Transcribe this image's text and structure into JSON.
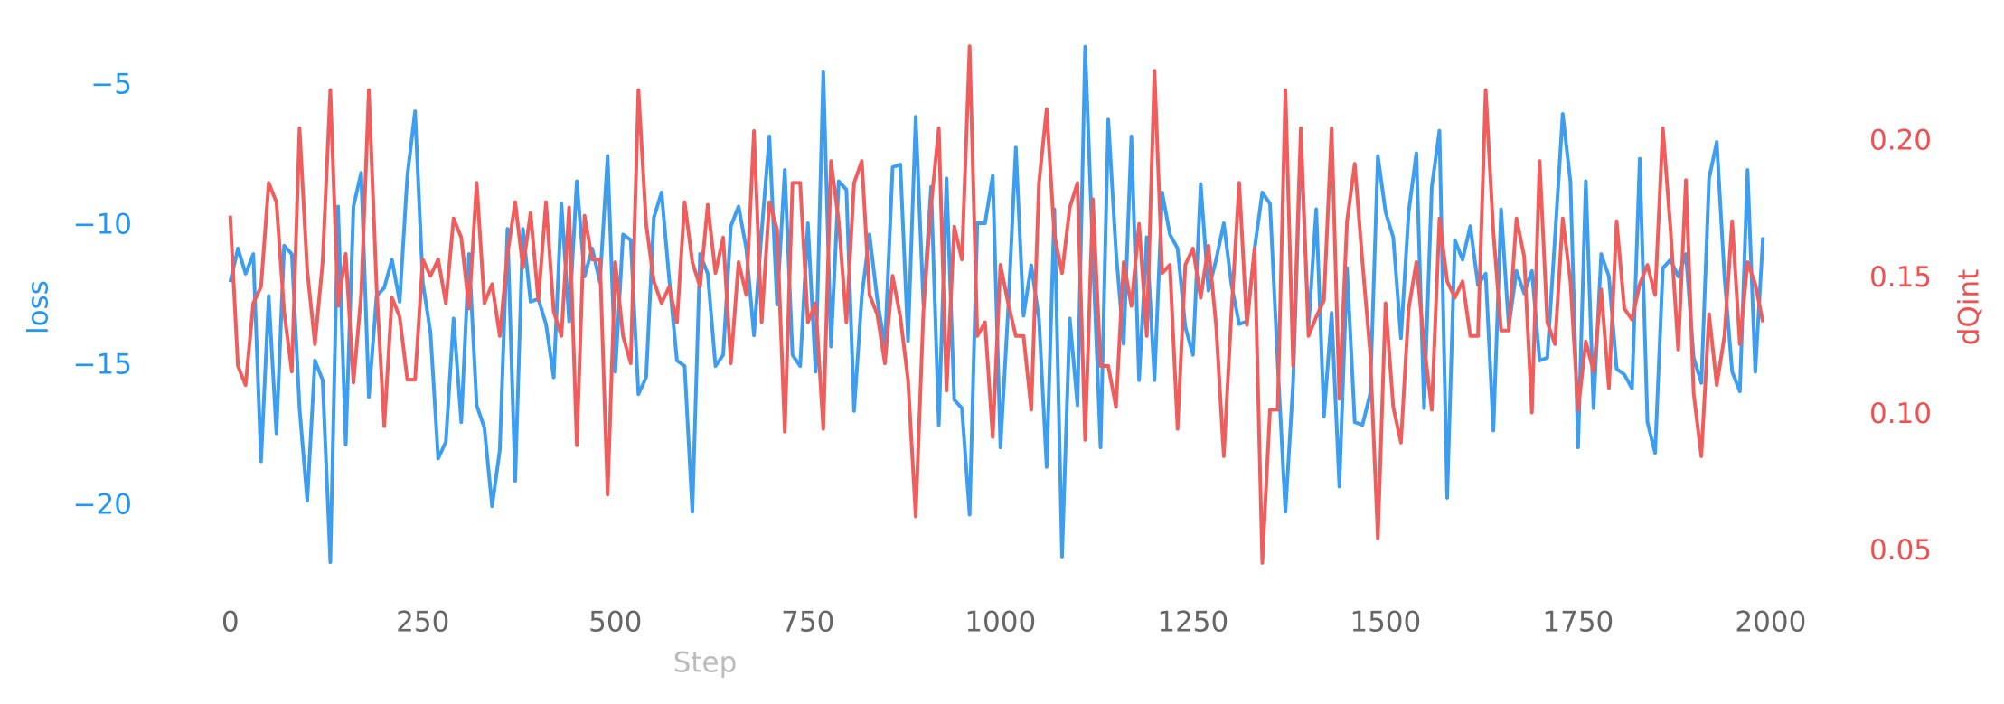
{
  "chart_data": {
    "type": "line",
    "xlabel": "Step",
    "ylabel": "loss",
    "y2label": "dQint",
    "x": [
      0,
      10,
      20,
      30,
      40,
      50,
      60,
      70,
      80,
      90,
      100,
      110,
      120,
      130,
      140,
      150,
      160,
      170,
      180,
      190,
      200,
      210,
      220,
      230,
      240,
      250,
      260,
      270,
      280,
      290,
      300,
      310,
      320,
      330,
      340,
      350,
      360,
      370,
      380,
      390,
      400,
      410,
      420,
      430,
      440,
      450,
      460,
      470,
      480,
      490,
      500,
      510,
      520,
      530,
      540,
      550,
      560,
      570,
      580,
      590,
      600,
      610,
      620,
      630,
      640,
      650,
      660,
      670,
      680,
      690,
      700,
      710,
      720,
      730,
      740,
      750,
      760,
      770,
      780,
      790,
      800,
      810,
      820,
      830,
      840,
      850,
      860,
      870,
      880,
      890,
      900,
      910,
      920,
      930,
      940,
      950,
      960,
      970,
      980,
      990,
      1000,
      1010,
      1020,
      1030,
      1040,
      1050,
      1060,
      1070,
      1080,
      1090,
      1100,
      1110,
      1120,
      1130,
      1140,
      1150,
      1160,
      1170,
      1180,
      1190,
      1200,
      1210,
      1220,
      1230,
      1240,
      1250,
      1260,
      1270,
      1280,
      1290,
      1300,
      1310,
      1320,
      1330,
      1340,
      1350,
      1360,
      1370,
      1380,
      1390,
      1400,
      1410,
      1420,
      1430,
      1440,
      1450,
      1460,
      1470,
      1480,
      1490,
      1500,
      1510,
      1520,
      1530,
      1540,
      1550,
      1560,
      1570,
      1580,
      1590,
      1600,
      1610,
      1620,
      1630,
      1640,
      1650,
      1660,
      1670,
      1680,
      1690,
      1700,
      1710,
      1720,
      1730,
      1740,
      1750,
      1760,
      1770,
      1780,
      1790,
      1800,
      1810,
      1820,
      1830,
      1840,
      1850,
      1860,
      1870,
      1880,
      1890,
      1900,
      1910,
      1920,
      1930,
      1940,
      1950,
      1960,
      1970,
      1980,
      1990
    ],
    "series": [
      {
        "color": "#3d9eef",
        "axis": "y",
        "values": [
          -12,
          -10.8,
          -11.7,
          -11,
          -18.4,
          -12.5,
          -17.4,
          -10.7,
          -11,
          -16.5,
          -19.8,
          -14.8,
          -15.5,
          -22,
          -9.3,
          -17.8,
          -9.3,
          -8.1,
          -16.1,
          -12.5,
          -12.2,
          -11.2,
          -12.7,
          -8.2,
          -5.9,
          -12,
          -13.8,
          -18.3,
          -17.7,
          -13.3,
          -17,
          -11,
          -16.4,
          -17.2,
          -20,
          -18,
          -10.1,
          -19.1,
          -10.1,
          -12.7,
          -12.6,
          -13.5,
          -15.4,
          -9.2,
          -13.4,
          -8.4,
          -11.8,
          -10.8,
          -12,
          -7.5,
          -15.2,
          -10.3,
          -10.5,
          -16,
          -15.4,
          -9.7,
          -8.8,
          -11.9,
          -14.8,
          -15,
          -20.2,
          -11,
          -11.7,
          -15,
          -14.6,
          -10,
          -9.3,
          -10.8,
          -13.9,
          -10.2,
          -6.8,
          -12.8,
          -8,
          -14.6,
          -15,
          -9.9,
          -15.2,
          -4.5,
          -14.3,
          -8.4,
          -8.7,
          -16.6,
          -12.5,
          -10.3,
          -12.6,
          -14.3,
          -7.9,
          -7.8,
          -14.1,
          -6.1,
          -12.8,
          -8.6,
          -17.1,
          -8.3,
          -16.2,
          -16.5,
          -20.3,
          -9.9,
          -9.9,
          -8.2,
          -17.9,
          -13,
          -7.2,
          -13.2,
          -11.4,
          -13.3,
          -18.6,
          -9.4,
          -21.8,
          -13.3,
          -16.4,
          -3.6,
          -11,
          -17.9,
          -6.2,
          -10.9,
          -14.2,
          -6.8,
          -15.5,
          -10.4,
          -15.5,
          -8.8,
          -10.3,
          -10.8,
          -13.6,
          -14.6,
          -8.5,
          -12.3,
          -11.2,
          -9.9,
          -12.1,
          -13.5,
          -13.4,
          -10.8,
          -8.8,
          -9.2,
          -14.9,
          -20.2,
          -15.6,
          -6.9,
          -13.6,
          -9.4,
          -16.8,
          -13.1,
          -19.3,
          -11.5,
          -17,
          -17.1,
          -16,
          -7.5,
          -9.5,
          -10.4,
          -14,
          -9.5,
          -7.4,
          -16.5,
          -8.6,
          -6.6,
          -19.7,
          -10.5,
          -11.2,
          -10,
          -12.1,
          -11.7,
          -17.3,
          -9.4,
          -13.6,
          -11.6,
          -12.4,
          -11.6,
          -14.8,
          -14.7,
          -10.4,
          -6,
          -8.4,
          -17.9,
          -8.4,
          -16.5,
          -11,
          -11.8,
          -15.1,
          -15.3,
          -15.8,
          -7.6,
          -17,
          -18.1,
          -11.5,
          -11.2,
          -11.8,
          -11,
          -14.7,
          -15.6,
          -8.3,
          -7,
          -11.8,
          -15.2,
          -15.9,
          -8,
          -15.2,
          -10.4
        ]
      },
      {
        "color": "#ef5d5d",
        "axis": "y2",
        "values": [
          0.173,
          0.118,
          0.111,
          0.141,
          0.147,
          0.185,
          0.178,
          0.138,
          0.116,
          0.205,
          0.153,
          0.126,
          0.156,
          0.219,
          0.14,
          0.159,
          0.112,
          0.144,
          0.219,
          0.147,
          0.096,
          0.143,
          0.136,
          0.113,
          0.113,
          0.157,
          0.151,
          0.157,
          0.141,
          0.172,
          0.165,
          0.139,
          0.185,
          0.141,
          0.148,
          0.129,
          0.159,
          0.178,
          0.154,
          0.174,
          0.142,
          0.178,
          0.138,
          0.129,
          0.176,
          0.089,
          0.173,
          0.157,
          0.157,
          0.071,
          0.156,
          0.129,
          0.119,
          0.219,
          0.17,
          0.149,
          0.141,
          0.147,
          0.134,
          0.178,
          0.156,
          0.147,
          0.177,
          0.152,
          0.165,
          0.119,
          0.156,
          0.144,
          0.204,
          0.134,
          0.178,
          0.168,
          0.094,
          0.185,
          0.185,
          0.134,
          0.141,
          0.095,
          0.193,
          0.171,
          0.134,
          0.185,
          0.193,
          0.144,
          0.137,
          0.119,
          0.151,
          0.136,
          0.113,
          0.063,
          0.138,
          0.177,
          0.205,
          0.109,
          0.169,
          0.157,
          0.235,
          0.129,
          0.134,
          0.092,
          0.155,
          0.141,
          0.129,
          0.129,
          0.102,
          0.185,
          0.212,
          0.166,
          0.152,
          0.176,
          0.185,
          0.091,
          0.179,
          0.118,
          0.118,
          0.103,
          0.156,
          0.14,
          0.17,
          0.129,
          0.226,
          0.152,
          0.155,
          0.095,
          0.155,
          0.161,
          0.143,
          0.162,
          0.133,
          0.085,
          0.138,
          0.185,
          0.133,
          0.161,
          0.046,
          0.102,
          0.102,
          0.219,
          0.118,
          0.205,
          0.129,
          0.136,
          0.142,
          0.205,
          0.106,
          0.171,
          0.192,
          0.156,
          0.123,
          0.055,
          0.141,
          0.103,
          0.09,
          0.139,
          0.156,
          0.126,
          0.102,
          0.172,
          0.149,
          0.143,
          0.149,
          0.129,
          0.129,
          0.219,
          0.167,
          0.131,
          0.131,
          0.172,
          0.158,
          0.101,
          0.193,
          0.134,
          0.126,
          0.172,
          0.149,
          0.102,
          0.127,
          0.116,
          0.146,
          0.11,
          0.171,
          0.139,
          0.135,
          0.148,
          0.155,
          0.144,
          0.205,
          0.168,
          0.124,
          0.186,
          0.108,
          0.085,
          0.137,
          0.111,
          0.129,
          0.171,
          0.126,
          0.156,
          0.148,
          0.134
        ]
      }
    ],
    "xlim": [
      -90,
      2060
    ],
    "xticks": [
      0,
      250,
      500,
      750,
      1000,
      1250,
      1500,
      1750,
      2000
    ],
    "ylim": [
      -22.9,
      -2.8
    ],
    "yticks": [
      {
        "value": -5,
        "label": "−5"
      },
      {
        "value": -10,
        "label": "−10"
      },
      {
        "value": -15,
        "label": "−15"
      },
      {
        "value": -20,
        "label": "−20"
      }
    ],
    "y2lim": [
      0.037,
      0.243
    ],
    "y2ticks": [
      {
        "value": 0.2,
        "label": "0.20"
      },
      0.15,
      {
        "value": 0.1,
        "label": "0.10"
      },
      0.05
    ],
    "ytick_color": "#2196f3",
    "y2tick_color": "#f05050",
    "xtick_color": "#666666",
    "xlabel_color": "#bbbbbb",
    "grid": false
  }
}
